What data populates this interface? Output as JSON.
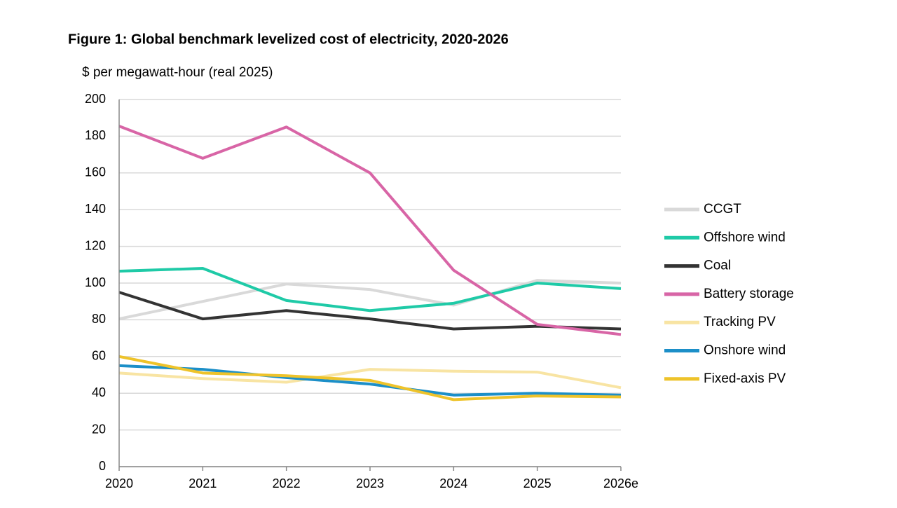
{
  "chart_data": {
    "type": "line",
    "title": "Figure 1: Global benchmark levelized cost of electricity, 2020-2026",
    "y_label": "$ per megawatt-hour (real 2025)",
    "categories": [
      "2020",
      "2021",
      "2022",
      "2023",
      "2024",
      "2025",
      "2026e"
    ],
    "ylim": [
      0,
      200
    ],
    "yticks": [
      0,
      20,
      40,
      60,
      80,
      100,
      120,
      140,
      160,
      180,
      200
    ],
    "grid": true,
    "legend": "right",
    "series": [
      {
        "name": "CCGT",
        "color": "#d9d9d9",
        "values": [
          80.5,
          90,
          99.5,
          96.5,
          88,
          101.5,
          100
        ]
      },
      {
        "name": "Offshore wind",
        "color": "#1fcaa7",
        "values": [
          106.5,
          108,
          90.5,
          85,
          89,
          100,
          97
        ]
      },
      {
        "name": "Coal",
        "color": "#333333",
        "values": [
          95,
          80.5,
          85,
          80.5,
          75,
          76.5,
          75
        ]
      },
      {
        "name": "Battery storage",
        "color": "#d865a6",
        "values": [
          185.5,
          168,
          185,
          160,
          107,
          77.5,
          72
        ]
      },
      {
        "name": "Tracking PV",
        "color": "#f8e4a3",
        "values": [
          51,
          48,
          46,
          53,
          52,
          51.5,
          43
        ]
      },
      {
        "name": "Onshore wind",
        "color": "#1c8fc8",
        "values": [
          55,
          53,
          48.5,
          45,
          39,
          40,
          39
        ]
      },
      {
        "name": "Fixed-axis PV",
        "color": "#eec32a",
        "values": [
          60,
          51,
          49.5,
          47,
          36.5,
          38.5,
          38
        ]
      }
    ]
  }
}
